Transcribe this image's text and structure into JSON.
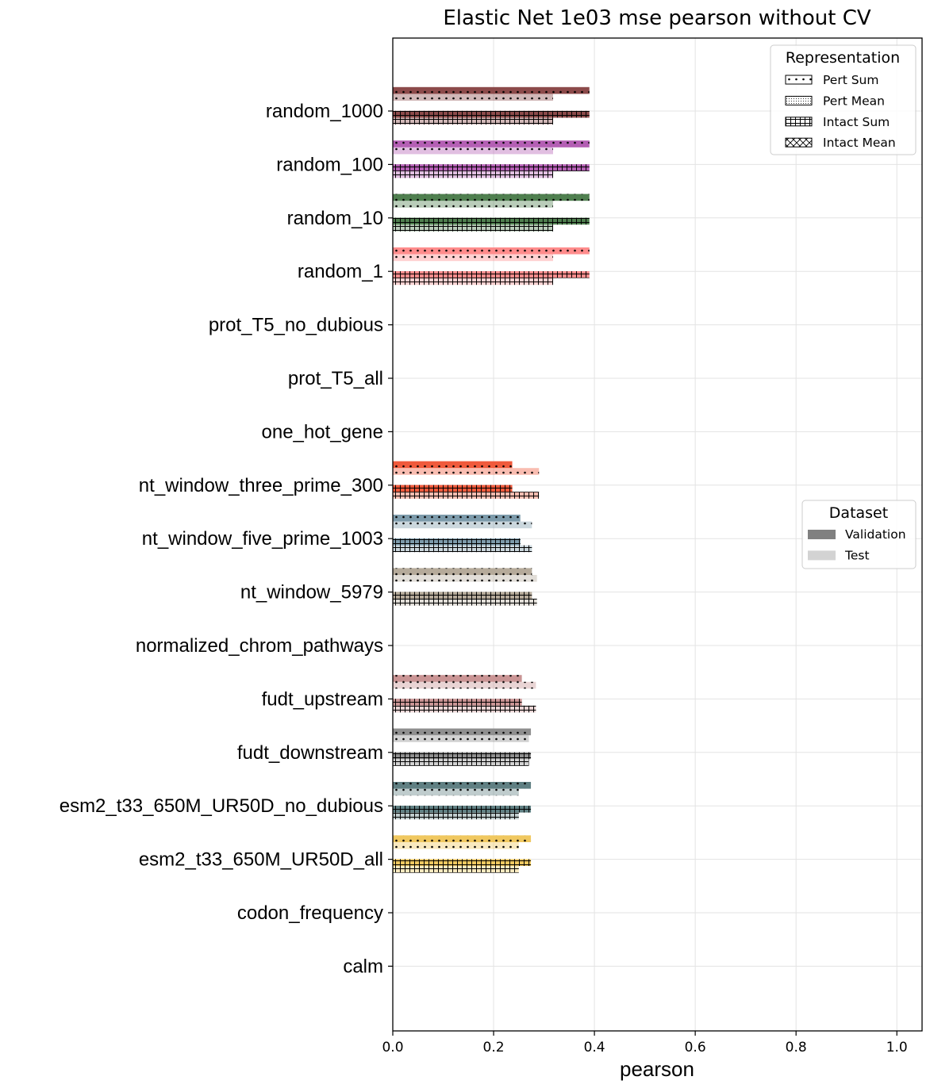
{
  "chart_data": {
    "type": "bar",
    "orientation": "horizontal",
    "title": "Elastic Net 1e03 mse pearson without CV",
    "xlabel": "pearson",
    "ylabel": "",
    "xlim": [
      0.0,
      1.05
    ],
    "xticks": [
      "0.0",
      "0.2",
      "0.4",
      "0.6",
      "0.8",
      "1.0"
    ],
    "grid": true,
    "categories": [
      "random_1000",
      "random_100",
      "random_10",
      "random_1",
      "prot_T5_no_dubious",
      "prot_T5_all",
      "one_hot_gene",
      "nt_window_three_prime_300",
      "nt_window_five_prime_1003",
      "nt_window_5979",
      "normalized_chrom_pathways",
      "fudt_upstream",
      "fudt_downstream",
      "esm2_t33_650M_UR50D_no_dubious",
      "esm2_t33_650M_UR50D_all",
      "codon_frequency",
      "calm"
    ],
    "category_colors": {
      "random_1000": "#8c4a4a",
      "random_100": "#b45fb4",
      "random_10": "#4f7f4f",
      "random_1": "#ff8c8c",
      "nt_window_three_prime_300": "#f05a3c",
      "nt_window_five_prime_1003": "#7d9bab",
      "nt_window_5979": "#b5aa9a",
      "fudt_upstream": "#c99494",
      "fudt_downstream": "#8f8f8f",
      "esm2_t33_650M_UR50D_no_dubious": "#5f7f82",
      "esm2_t33_650M_UR50D_all": "#f0c860"
    },
    "series": [
      {
        "representation": "Pert Sum",
        "dataset": "Validation",
        "values": [
          0.39,
          0.39,
          0.39,
          0.39,
          null,
          null,
          null,
          0.237,
          0.253,
          0.276,
          null,
          0.256,
          0.274,
          0.274,
          0.274,
          null,
          null
        ]
      },
      {
        "representation": "Pert Sum",
        "dataset": "Test",
        "values": [
          0.318,
          0.318,
          0.318,
          0.318,
          null,
          null,
          null,
          0.29,
          0.276,
          0.286,
          null,
          0.284,
          0.27,
          0.25,
          0.25,
          null,
          null
        ]
      },
      {
        "representation": "Intact Sum",
        "dataset": "Validation",
        "values": [
          0.39,
          0.39,
          0.39,
          0.39,
          null,
          null,
          null,
          0.237,
          0.253,
          0.276,
          null,
          0.256,
          0.274,
          0.274,
          0.274,
          null,
          null
        ]
      },
      {
        "representation": "Intact Sum",
        "dataset": "Test",
        "values": [
          0.318,
          0.318,
          0.318,
          0.318,
          null,
          null,
          null,
          0.29,
          0.276,
          0.286,
          null,
          0.284,
          0.27,
          0.25,
          0.25,
          null,
          null
        ]
      }
    ],
    "legends": [
      {
        "title": "Representation",
        "placement": "top-right",
        "entries": [
          {
            "label": "Pert Sum",
            "hatch": "dots"
          },
          {
            "label": "Pert Mean",
            "hatch": "fine-dots"
          },
          {
            "label": "Intact Sum",
            "hatch": "grid"
          },
          {
            "label": "Intact Mean",
            "hatch": "cross"
          }
        ]
      },
      {
        "title": "Dataset",
        "placement": "center-right",
        "entries": [
          {
            "label": "Validation",
            "color": "#808080"
          },
          {
            "label": "Test",
            "color": "#d3d3d3"
          }
        ]
      }
    ]
  }
}
